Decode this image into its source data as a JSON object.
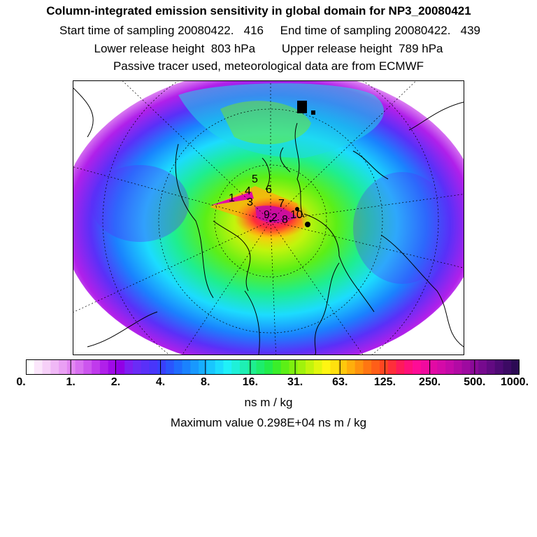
{
  "header": {
    "title": "Column-integrated emission sensitivity in global domain for NP3_20080421",
    "line1": "Start time of sampling 20080422.   416     End time of sampling 20080422.   439",
    "line2": "Lower release height  803 hPa        Upper release height  789 hPa",
    "line3": "Passive tracer used, meteorological data are from ECMWF"
  },
  "map": {
    "projection": "polar stereographic (north pole)",
    "release_labels": [
      "1",
      "2",
      "3",
      "4",
      "5",
      "6",
      "7",
      "8",
      "9",
      "10"
    ],
    "colors": {
      "coast": "#000000",
      "grid": "#000000"
    }
  },
  "colorbar": {
    "tick_labels": [
      "0.",
      "1.",
      "2.",
      "4.",
      "8.",
      "16.",
      "31.",
      "63.",
      "125.",
      "250.",
      "500.",
      "1000."
    ],
    "colors": [
      "#ffffff",
      "#fbe6fb",
      "#f6d0f8",
      "#f0b8f6",
      "#eaa0f4",
      "#e387f2",
      "#d870f0",
      "#cc55ee",
      "#c03aec",
      "#b020ea",
      "#a00ae8",
      "#9100e6",
      "#7e1ef2",
      "#6a2cf6",
      "#5a30f8",
      "#4836fa",
      "#3840fc",
      "#2a55fd",
      "#1f6cfe",
      "#1a82fe",
      "#1898fe",
      "#17aefe",
      "#19c6fe",
      "#1cdcfe",
      "#20f0f8",
      "#1ff0d8",
      "#1eefb4",
      "#1eee90",
      "#1ded6c",
      "#22ec4a",
      "#3aee2a",
      "#5cef16",
      "#7ef00e",
      "#a0f20c",
      "#c2f40c",
      "#e2f60e",
      "#fff512",
      "#ffe00e",
      "#ffc80c",
      "#ffae0c",
      "#ff920e",
      "#ff7612",
      "#ff5e18",
      "#ff4620",
      "#ff2e3a",
      "#ff1a5a",
      "#ff107a",
      "#fe0c96",
      "#f00a9e",
      "#e20aa4",
      "#d40aa8",
      "#c40aa8",
      "#b20aa4",
      "#9e0aa0",
      "#8a0a98",
      "#760a8e",
      "#620a82",
      "#4e0a74",
      "#3c0a64",
      "#2c0a54"
    ]
  },
  "units": "ns m / kg",
  "maximum": "Maximum value  0.298E+04 ns m / kg"
}
